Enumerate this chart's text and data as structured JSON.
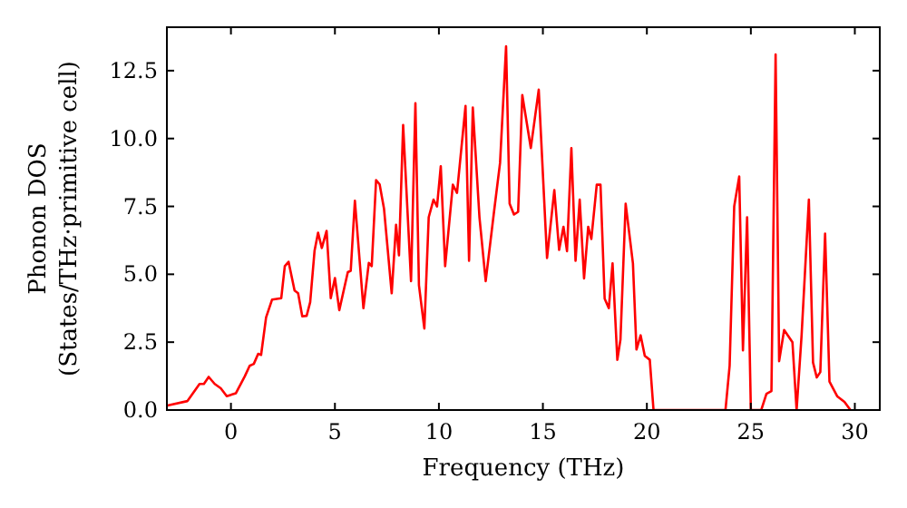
{
  "chart_data": {
    "type": "line",
    "xlabel": "Frequency (THz)",
    "ylabel": "Phonon DOS\n(States/THz·primitive cell)",
    "xlim": [
      -3.08,
      31.2
    ],
    "ylim": [
      0,
      14.1
    ],
    "xticks": [
      0,
      5,
      10,
      15,
      20,
      25,
      30
    ],
    "yticks": [
      {
        "value": 0,
        "label": "0.0"
      },
      2.5,
      {
        "value": 5,
        "label": "5.0"
      },
      7.5,
      {
        "value": 10,
        "label": "10.0"
      },
      12.5
    ],
    "grid": false,
    "line_style": "solid",
    "marker": "none",
    "series": [
      {
        "color": "#ff0000",
        "x": [
          -3.05,
          -2.09,
          -1.51,
          -1.3,
          -1.07,
          -0.78,
          -0.49,
          -0.2,
          0.24,
          0.67,
          0.9,
          1.1,
          1.31,
          1.45,
          1.69,
          1.98,
          2.42,
          2.59,
          2.77,
          3.06,
          3.23,
          3.43,
          3.64,
          3.81,
          4.02,
          4.19,
          4.37,
          4.6,
          4.8,
          5.0,
          5.21,
          5.62,
          5.76,
          5.96,
          6.37,
          6.63,
          6.77,
          6.98,
          7.15,
          7.36,
          7.73,
          7.94,
          8.08,
          8.28,
          8.66,
          8.87,
          9.04,
          9.3,
          9.51,
          9.74,
          9.91,
          10.09,
          10.3,
          10.67,
          10.87,
          11.28,
          11.45,
          11.63,
          11.95,
          12.25,
          12.65,
          12.94,
          13.23,
          13.4,
          13.61,
          13.81,
          14.01,
          14.42,
          14.8,
          15.2,
          15.55,
          15.78,
          15.99,
          16.16,
          16.37,
          16.57,
          16.77,
          16.98,
          17.18,
          17.33,
          17.59,
          17.77,
          17.97,
          18.17,
          18.35,
          18.58,
          18.73,
          18.98,
          19.33,
          19.5,
          19.7,
          19.9,
          20.14,
          20.32,
          23.78,
          23.98,
          24.2,
          24.44,
          24.62,
          24.82,
          25.0,
          25.5,
          25.75,
          25.99,
          26.19,
          26.36,
          26.6,
          27.0,
          27.2,
          27.44,
          27.79,
          27.99,
          28.17,
          28.34,
          28.57,
          28.78,
          29.16,
          29.5,
          29.79
        ],
        "values": [
          0.17,
          0.33,
          0.96,
          0.96,
          1.22,
          0.96,
          0.8,
          0.51,
          0.62,
          1.25,
          1.63,
          1.7,
          2.07,
          2.03,
          3.41,
          4.07,
          4.12,
          5.3,
          5.46,
          4.4,
          4.3,
          3.45,
          3.47,
          3.97,
          5.86,
          6.53,
          5.97,
          6.6,
          4.12,
          4.86,
          3.68,
          5.08,
          5.13,
          7.71,
          3.75,
          5.42,
          5.3,
          8.47,
          8.31,
          7.42,
          4.3,
          6.82,
          5.7,
          10.5,
          4.75,
          11.3,
          4.6,
          3.0,
          7.1,
          7.75,
          7.5,
          8.98,
          5.3,
          8.3,
          8.0,
          11.2,
          5.5,
          11.14,
          7.1,
          4.75,
          7.3,
          9.1,
          13.4,
          7.6,
          7.2,
          7.3,
          11.6,
          9.65,
          11.8,
          5.6,
          8.1,
          5.9,
          6.75,
          5.85,
          9.65,
          5.5,
          7.75,
          4.85,
          6.75,
          6.3,
          8.3,
          8.3,
          4.1,
          3.75,
          5.4,
          1.85,
          2.6,
          7.6,
          5.4,
          2.23,
          2.75,
          2.0,
          1.85,
          0,
          0,
          1.63,
          7.5,
          8.6,
          2.2,
          7.1,
          0,
          0,
          0.6,
          0.7,
          13.1,
          1.8,
          2.95,
          2.5,
          0,
          2.75,
          7.75,
          1.75,
          1.2,
          1.4,
          6.5,
          1.05,
          0.5,
          0.3,
          0
        ]
      }
    ]
  }
}
